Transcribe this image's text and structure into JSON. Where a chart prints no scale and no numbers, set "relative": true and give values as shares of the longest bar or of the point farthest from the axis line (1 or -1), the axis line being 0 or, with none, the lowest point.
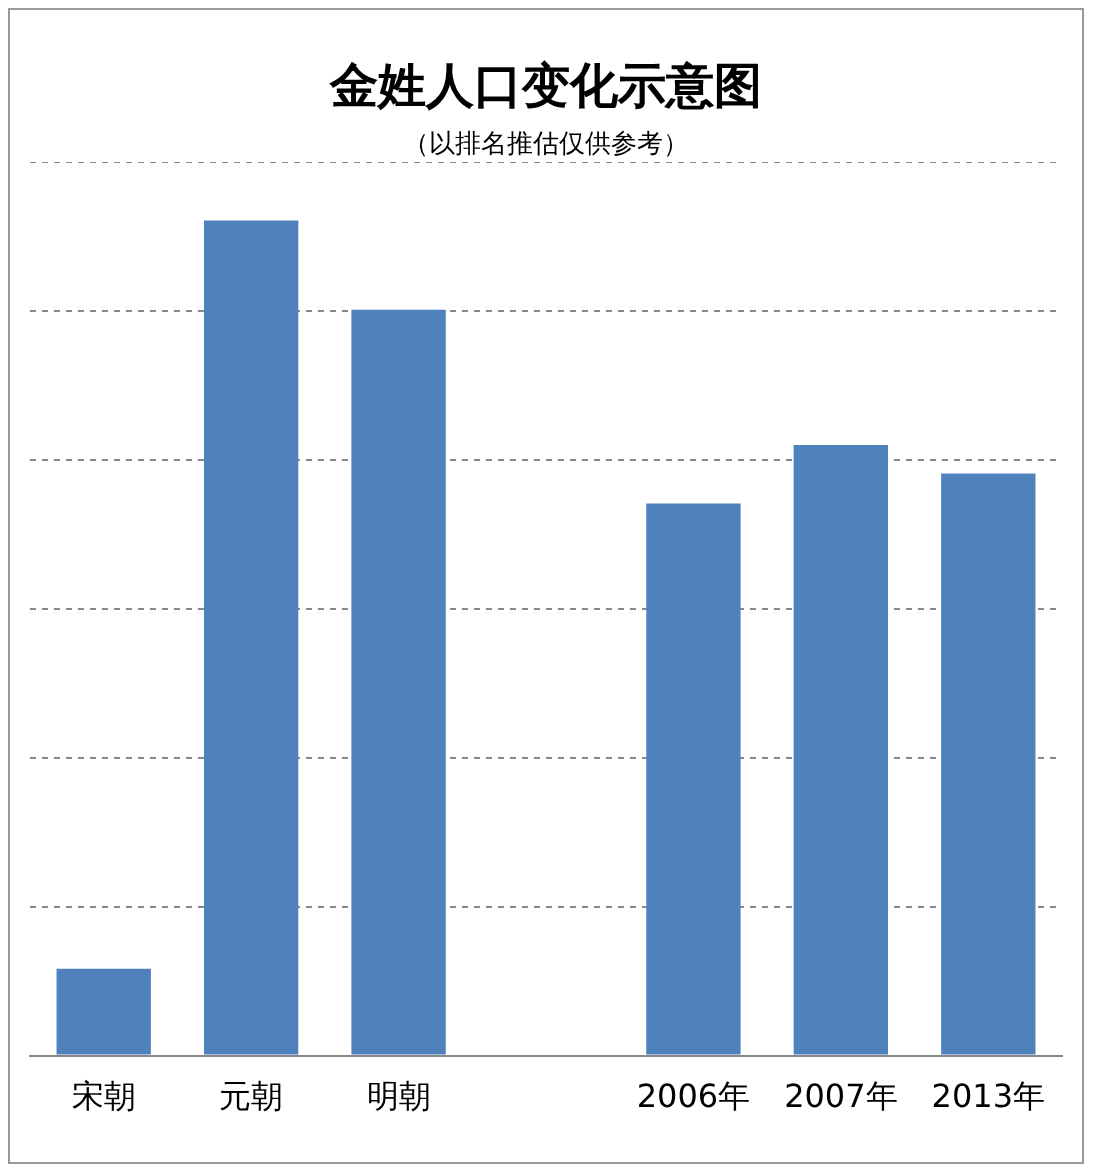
{
  "chart_data": {
    "type": "bar",
    "title": "金姓人口变化示意图",
    "subtitle": "（以排名推估仅供参考）",
    "categories": [
      "宋朝",
      "元朝",
      "明朝",
      null,
      "2006年",
      "2007年",
      "2013年"
    ],
    "values": [
      0.104,
      1,
      0.893,
      null,
      0.661,
      0.731,
      0.697
    ],
    "color": "#4f81bd",
    "relative": true,
    "grid": "y"
  }
}
